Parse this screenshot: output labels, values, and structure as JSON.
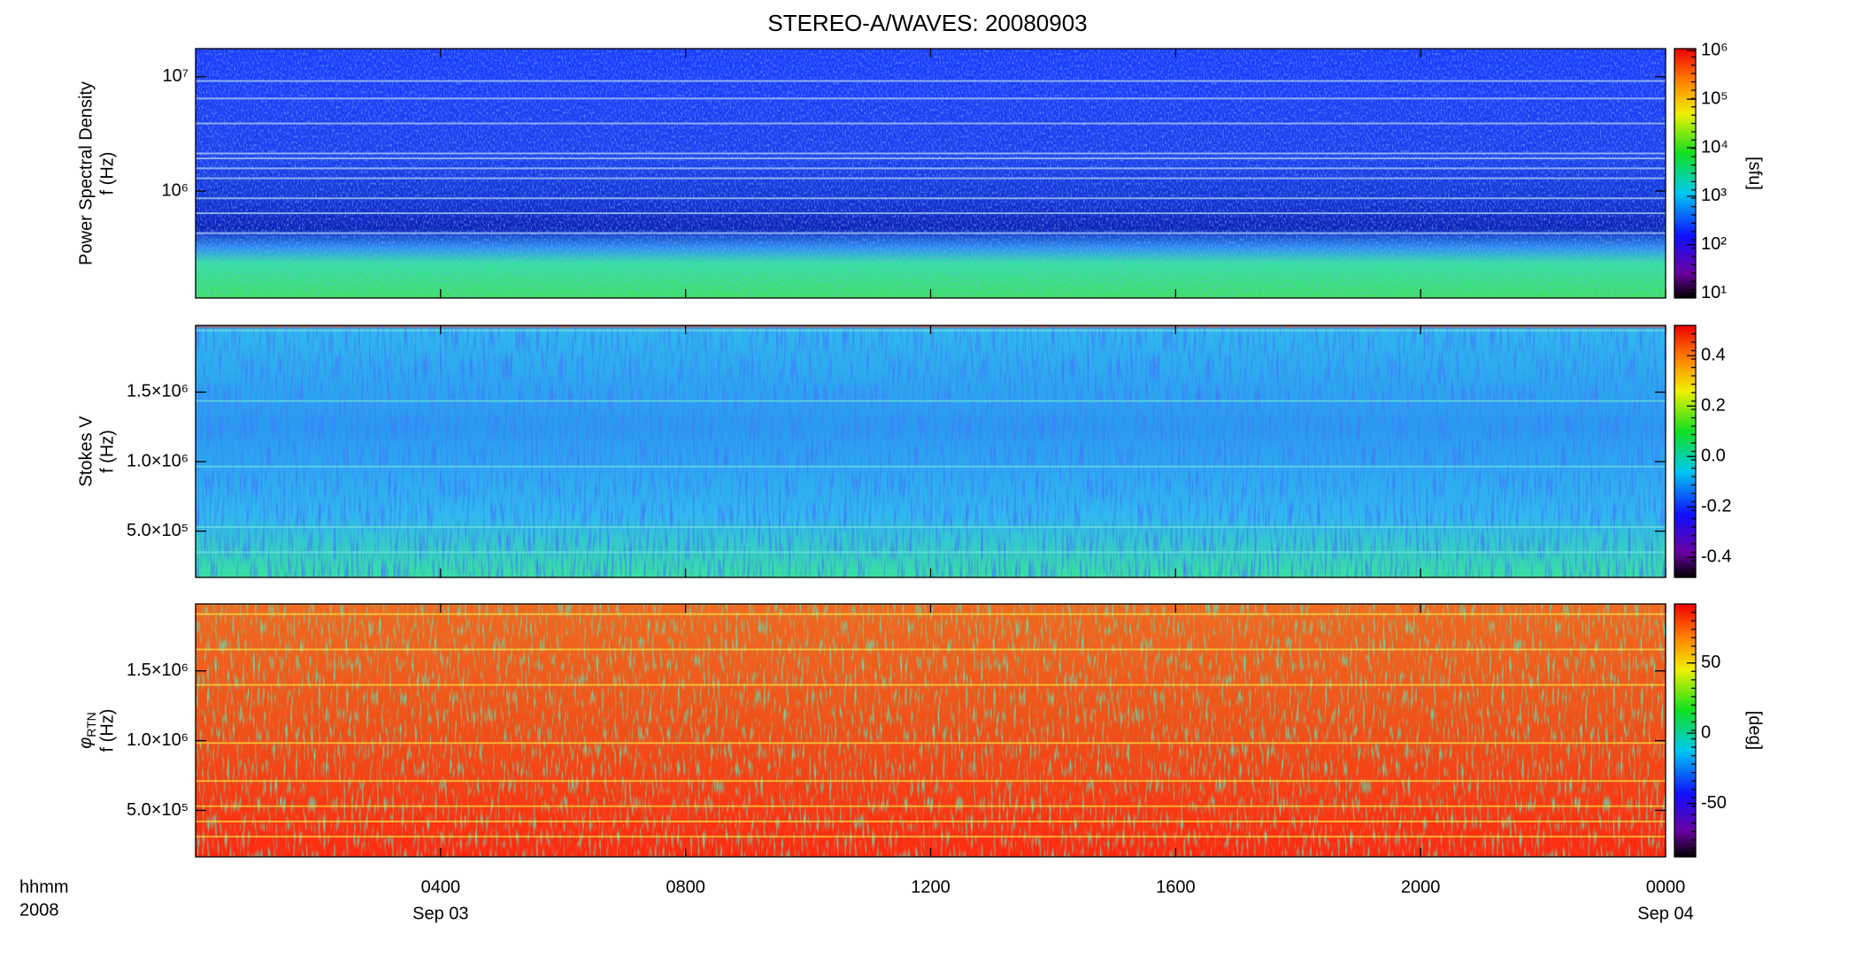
{
  "title": "STEREO-A/WAVES: 20080903",
  "x_axis": {
    "xlim": [
      0,
      24
    ],
    "xticks": [
      {
        "value": 4,
        "label": "0400"
      },
      {
        "value": 8,
        "label": "0800"
      },
      {
        "value": 12,
        "label": "1200"
      },
      {
        "value": 16,
        "label": "1600"
      },
      {
        "value": 20,
        "label": "2000"
      },
      {
        "value": 24,
        "label": "0000"
      }
    ],
    "date_ticks": [
      {
        "value": 4,
        "label": "Sep 03"
      },
      {
        "value": 24,
        "label": "Sep 04"
      }
    ],
    "unit_label": "hhmm",
    "year_label": "2008"
  },
  "chart_data": [
    {
      "type": "spectrogram",
      "ylabel": "Power Spectral Density",
      "ylabel_f": "f (Hz)",
      "ylog": true,
      "ylim": [
        116000,
        17600000
      ],
      "yticks": [
        {
          "value": 1000000,
          "label": "10⁶"
        },
        {
          "value": 10000000,
          "label": "10⁷"
        }
      ],
      "colorbar": {
        "log": true,
        "lim": [
          8,
          1100000
        ],
        "ticks": [
          {
            "value": 10,
            "label": "10¹"
          },
          {
            "value": 100,
            "label": "10²"
          },
          {
            "value": 1000,
            "label": "10³"
          },
          {
            "value": 10000,
            "label": "10⁴"
          },
          {
            "value": 100000,
            "label": "10⁵"
          },
          {
            "value": 1000000,
            "label": "10⁶"
          }
        ],
        "label": "[sfu]"
      }
    },
    {
      "type": "spectrogram",
      "ylabel": "Stokes V",
      "ylabel_f": "f (Hz)",
      "ylog": false,
      "ylim": [
        167000,
        1980000
      ],
      "yticks": [
        {
          "value": 500000,
          "label": "5.0×10⁵"
        },
        {
          "value": 1000000,
          "label": "1.0×10⁶"
        },
        {
          "value": 1500000,
          "label": "1.5×10⁶"
        }
      ],
      "colorbar": {
        "log": false,
        "lim": [
          -0.48,
          0.52
        ],
        "ticks": [
          -0.4,
          -0.2,
          {
            "value": 0,
            "label": "0.0"
          },
          0.2,
          0.4
        ]
      }
    },
    {
      "type": "spectrogram",
      "ylabel_symbol": "φ",
      "ylabel_sub": "RTN",
      "ylabel_f": "f (Hz)",
      "ylog": false,
      "ylim": [
        167000,
        1980000
      ],
      "yticks": [
        {
          "value": 500000,
          "label": "5.0×10⁵"
        },
        {
          "value": 1000000,
          "label": "1.0×10⁶"
        },
        {
          "value": 1500000,
          "label": "1.5×10⁶"
        }
      ],
      "colorbar": {
        "log": false,
        "lim": [
          -88,
          92
        ],
        "ticks": [
          -50,
          0,
          50
        ],
        "label": "[deg]"
      }
    }
  ]
}
